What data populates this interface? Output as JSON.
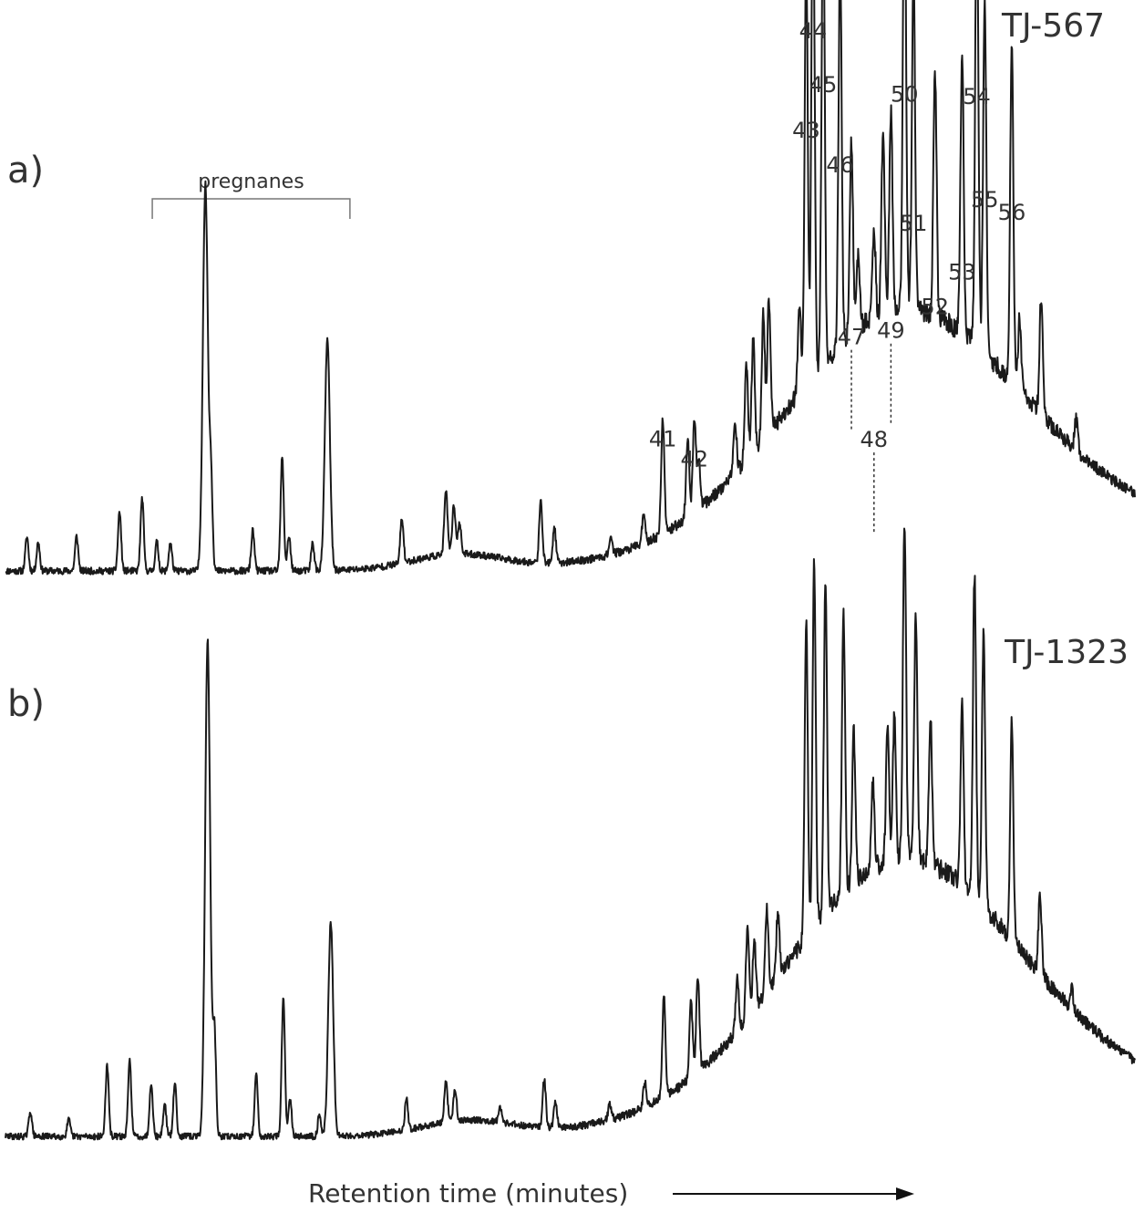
{
  "figure": {
    "axis_label": "Retention time (minutes)",
    "arrow": "right-arrow"
  },
  "chart_data": [
    {
      "type": "line",
      "panel": "a)",
      "sample": "TJ-567",
      "xlabel": "Retention time (minutes)",
      "ylabel": "",
      "xlim": [
        0,
        100
      ],
      "ylim": [
        0,
        100
      ],
      "grid": false,
      "bracket": {
        "label": "pregnanes",
        "x_range": [
          13,
          30.5
        ]
      },
      "peaks": [
        {
          "x": 1.9,
          "y": 6.5
        },
        {
          "x": 2.9,
          "y": 5.5
        },
        {
          "x": 6.3,
          "y": 6.6
        },
        {
          "x": 10.1,
          "y": 11.3
        },
        {
          "x": 12.1,
          "y": 14.0
        },
        {
          "x": 13.4,
          "y": 5.6
        },
        {
          "x": 14.6,
          "y": 5.4
        },
        {
          "x": 17.7,
          "y": 73.8,
          "w": 0.22
        },
        {
          "x": 18.2,
          "y": 17.0
        },
        {
          "x": 21.9,
          "y": 7.7
        },
        {
          "x": 24.5,
          "y": 21.6
        },
        {
          "x": 25.1,
          "y": 6.7
        },
        {
          "x": 27.2,
          "y": 5.3
        },
        {
          "x": 28.5,
          "y": 44.2,
          "w": 0.22
        },
        {
          "x": 35.1,
          "y": 8.6
        },
        {
          "x": 39.0,
          "y": 12.3
        },
        {
          "x": 39.7,
          "y": 9.5
        },
        {
          "x": 40.2,
          "y": 6.1
        },
        {
          "x": 47.4,
          "y": 11.7
        },
        {
          "x": 48.6,
          "y": 6.6
        },
        {
          "x": 53.6,
          "y": 3.4
        },
        {
          "x": 56.5,
          "y": 5.2
        },
        {
          "x": 58.2,
          "y": 22.0,
          "label": "41"
        },
        {
          "x": 60.4,
          "y": 14.8
        },
        {
          "x": 61.0,
          "y": 18.2,
          "label": "42"
        },
        {
          "x": 61.4,
          "y": 8.4
        },
        {
          "x": 64.6,
          "y": 9.3
        },
        {
          "x": 65.6,
          "y": 18.2
        },
        {
          "x": 66.2,
          "y": 21.8
        },
        {
          "x": 67.1,
          "y": 24.0
        },
        {
          "x": 67.6,
          "y": 25.5
        },
        {
          "x": 70.3,
          "y": 16.3
        },
        {
          "x": 70.9,
          "y": 81.0,
          "label": "43"
        },
        {
          "x": 71.5,
          "y": 100.0,
          "label": "44"
        },
        {
          "x": 72.4,
          "y": 89.7,
          "label": "45"
        },
        {
          "x": 73.9,
          "y": 74.4,
          "label": "46"
        },
        {
          "x": 74.9,
          "y": 37.0,
          "label": "47",
          "leader": true
        },
        {
          "x": 75.5,
          "y": 14.3
        },
        {
          "x": 76.9,
          "y": 17.4,
          "label": "48",
          "leader": true
        },
        {
          "x": 77.7,
          "y": 34.9
        },
        {
          "x": 78.4,
          "y": 38.2,
          "label": "49",
          "leader": true
        },
        {
          "x": 79.6,
          "y": 87.9,
          "label": "50"
        },
        {
          "x": 80.4,
          "y": 63.2,
          "label": "51"
        },
        {
          "x": 82.3,
          "y": 47.3,
          "label": "52"
        },
        {
          "x": 84.7,
          "y": 53.9,
          "label": "53"
        },
        {
          "x": 86.0,
          "y": 87.5,
          "label": "54"
        },
        {
          "x": 86.7,
          "y": 67.8,
          "label": "55"
        },
        {
          "x": 89.1,
          "y": 65.3,
          "label": "56"
        },
        {
          "x": 89.8,
          "y": 14.0
        },
        {
          "x": 91.7,
          "y": 22.6
        },
        {
          "x": 94.8,
          "y": 5.9
        }
      ]
    },
    {
      "type": "line",
      "panel": "b)",
      "sample": "TJ-1323",
      "xlabel": "Retention time (minutes)",
      "ylabel": "",
      "xlim": [
        0,
        100
      ],
      "ylim": [
        0,
        100
      ],
      "grid": false,
      "peaks": [
        {
          "x": 2.2,
          "y": 5.1
        },
        {
          "x": 5.6,
          "y": 3.3
        },
        {
          "x": 9.0,
          "y": 14.3
        },
        {
          "x": 11.0,
          "y": 15.2
        },
        {
          "x": 12.9,
          "y": 10.9
        },
        {
          "x": 14.1,
          "y": 6.6
        },
        {
          "x": 15.0,
          "y": 10.8
        },
        {
          "x": 17.9,
          "y": 100.0,
          "w": 0.22
        },
        {
          "x": 18.5,
          "y": 21.3
        },
        {
          "x": 22.2,
          "y": 12.5
        },
        {
          "x": 24.6,
          "y": 28.4
        },
        {
          "x": 25.2,
          "y": 7.9
        },
        {
          "x": 27.8,
          "y": 4.5
        },
        {
          "x": 28.8,
          "y": 42.9,
          "w": 0.22
        },
        {
          "x": 35.5,
          "y": 6.2
        },
        {
          "x": 39.0,
          "y": 8.1
        },
        {
          "x": 39.8,
          "y": 6.6
        },
        {
          "x": 43.8,
          "y": 3.1
        },
        {
          "x": 47.7,
          "y": 9.7
        },
        {
          "x": 48.7,
          "y": 5.3
        },
        {
          "x": 53.5,
          "y": 3.1
        },
        {
          "x": 56.6,
          "y": 5.0
        },
        {
          "x": 58.3,
          "y": 20.6
        },
        {
          "x": 60.7,
          "y": 15.3
        },
        {
          "x": 61.3,
          "y": 19.6
        },
        {
          "x": 64.8,
          "y": 10.3
        },
        {
          "x": 65.7,
          "y": 18.5
        },
        {
          "x": 66.3,
          "y": 14.0
        },
        {
          "x": 67.4,
          "y": 17.5
        },
        {
          "x": 68.4,
          "y": 13.8
        },
        {
          "x": 70.9,
          "y": 64.1
        },
        {
          "x": 71.6,
          "y": 74.1
        },
        {
          "x": 72.6,
          "y": 67.6
        },
        {
          "x": 74.2,
          "y": 55.8
        },
        {
          "x": 75.1,
          "y": 31.0
        },
        {
          "x": 76.8,
          "y": 17.1
        },
        {
          "x": 78.1,
          "y": 27.2
        },
        {
          "x": 78.7,
          "y": 29.0
        },
        {
          "x": 79.6,
          "y": 68.4
        },
        {
          "x": 80.6,
          "y": 48.7
        },
        {
          "x": 81.9,
          "y": 29.5
        },
        {
          "x": 84.7,
          "y": 36.8
        },
        {
          "x": 85.8,
          "y": 64.9
        },
        {
          "x": 86.6,
          "y": 55.4
        },
        {
          "x": 89.1,
          "y": 43.9
        },
        {
          "x": 91.6,
          "y": 16.0
        },
        {
          "x": 94.4,
          "y": 4.0
        }
      ]
    }
  ]
}
